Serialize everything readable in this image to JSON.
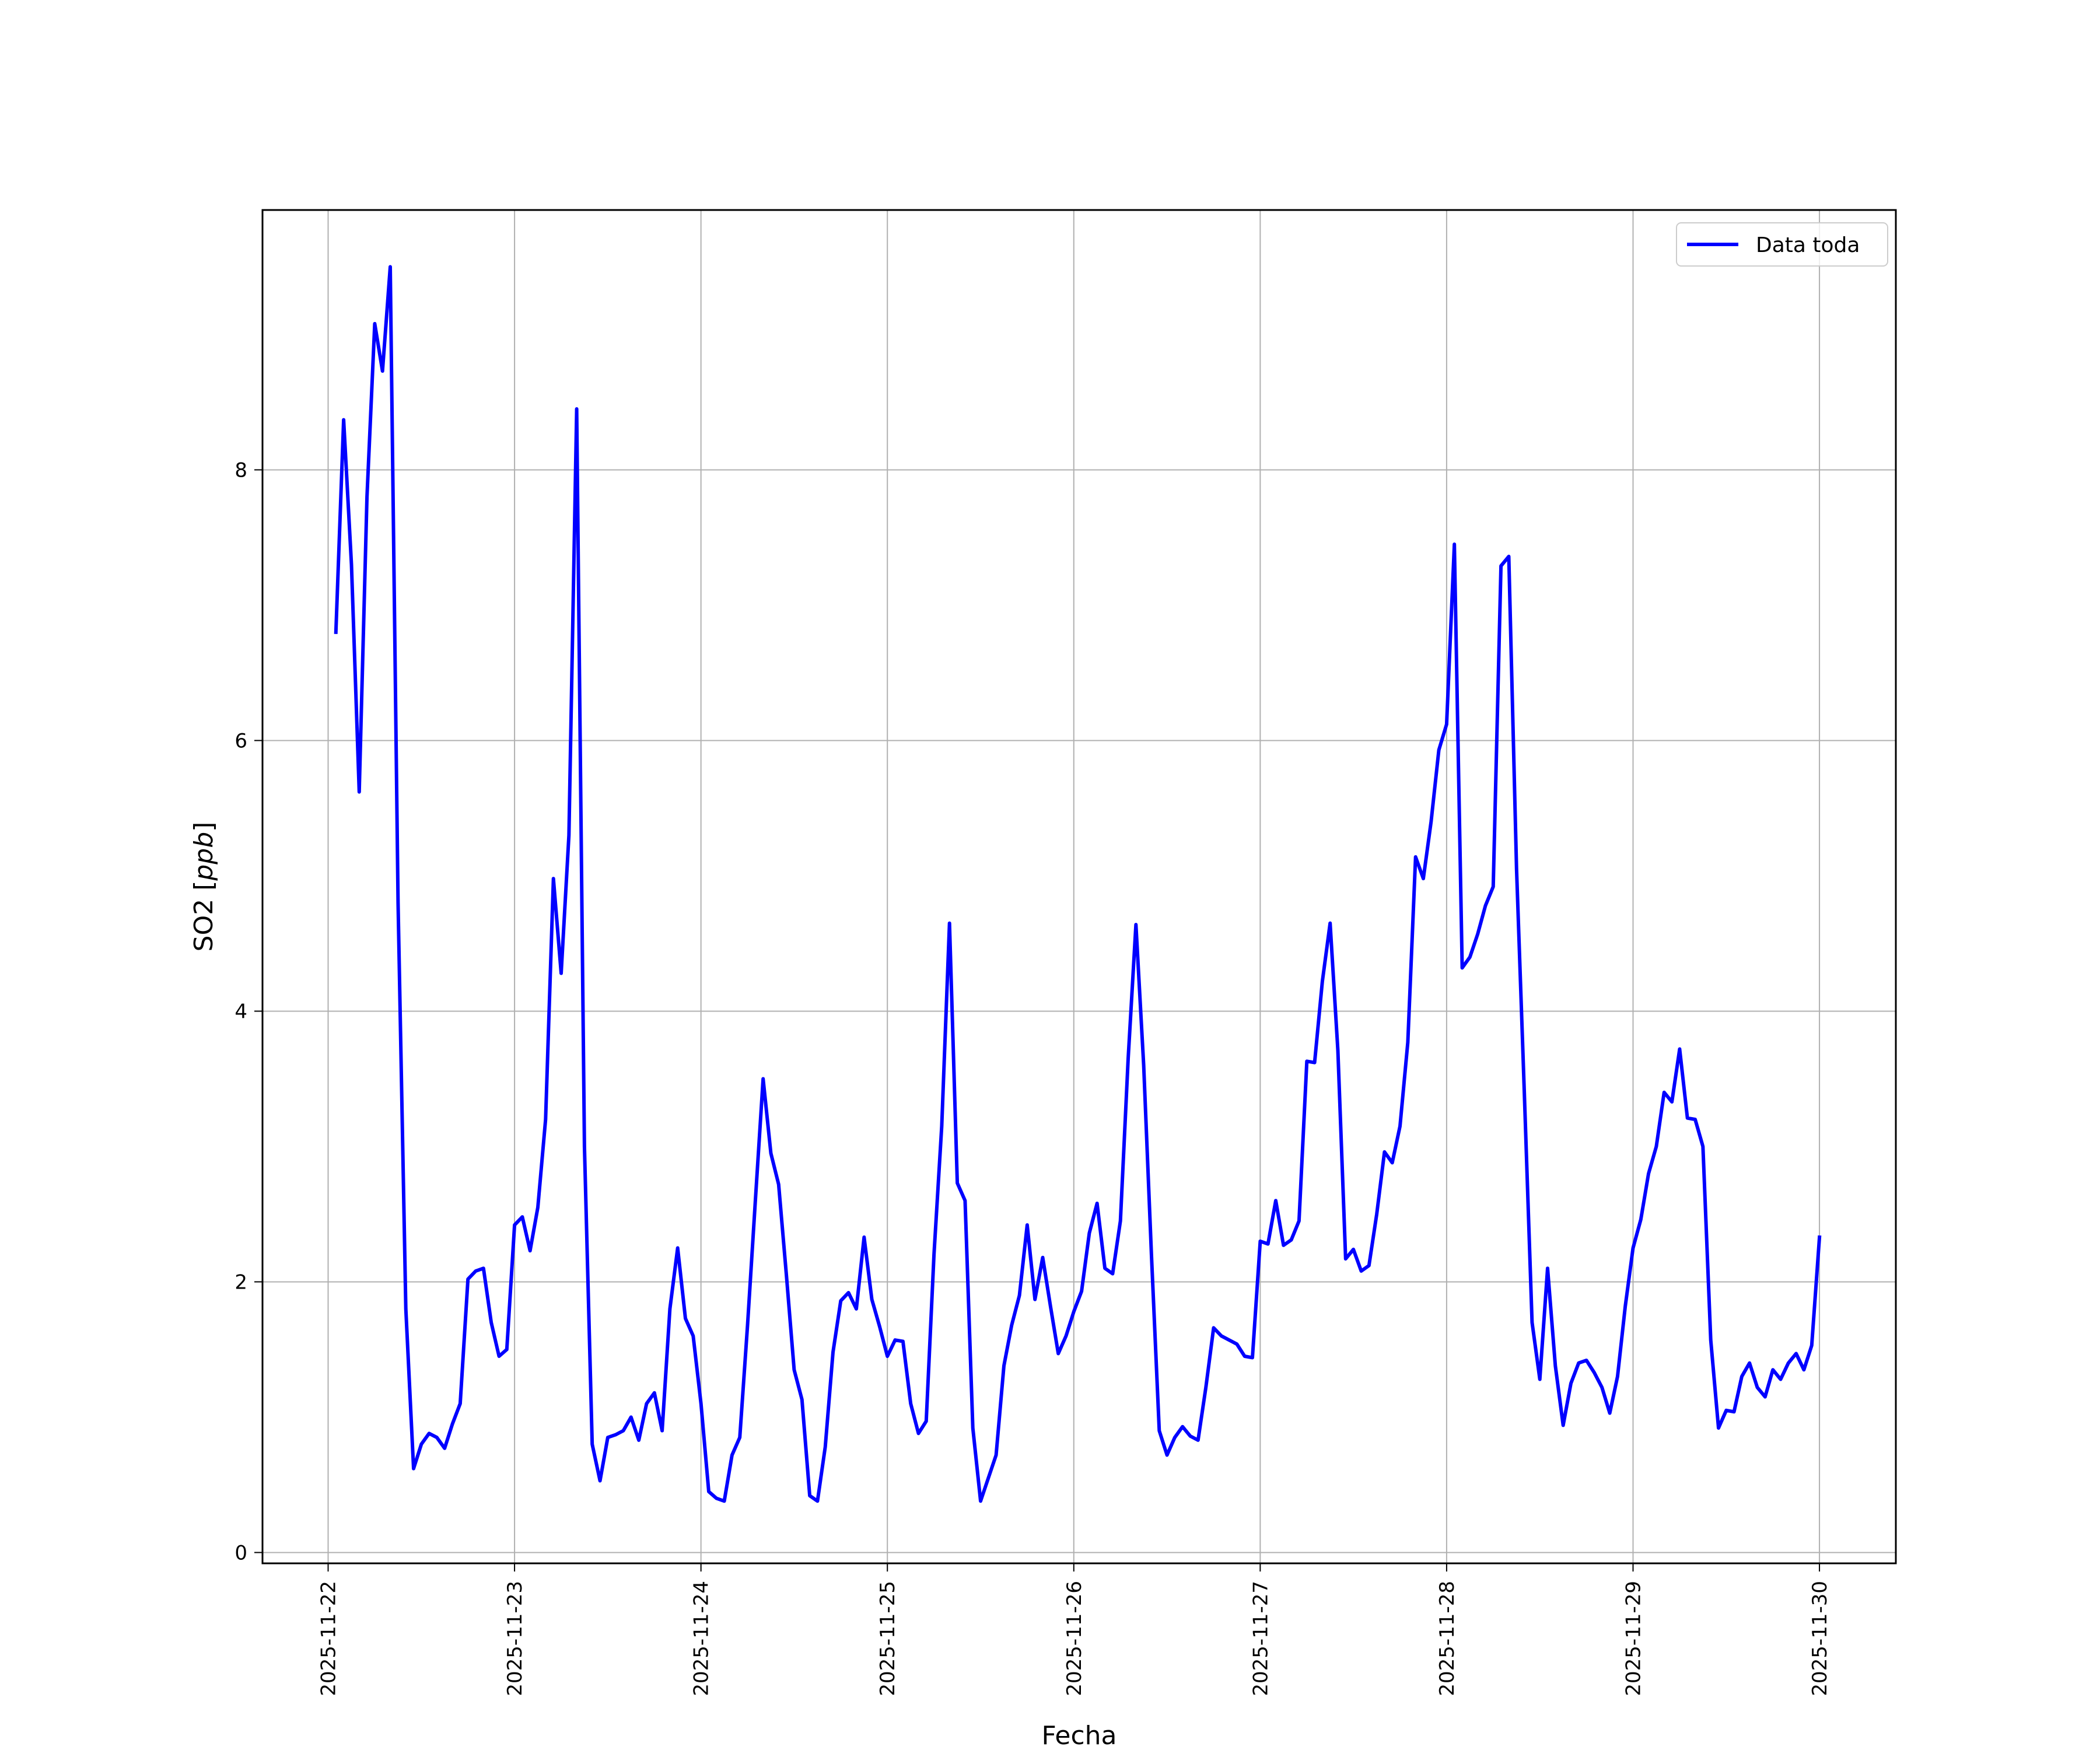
{
  "chart_data": {
    "type": "line",
    "xlabel": "Fecha",
    "ylabel": "SO2 [ppb]",
    "ylabel_main": "SO2 ",
    "ylabel_open": "[",
    "ylabel_unit": "ppb",
    "ylabel_close": "]",
    "x_ticks": [
      "2025-11-22",
      "2025-11-23",
      "2025-11-24",
      "2025-11-25",
      "2025-11-26",
      "2025-11-27",
      "2025-11-28",
      "2025-11-29",
      "2025-11-30"
    ],
    "y_ticks": [
      "0",
      "2",
      "4",
      "6",
      "8"
    ],
    "xlim": [
      "2025-11-21 15:33",
      "2025-11-30 09:50"
    ],
    "ylim": [
      -0.08,
      9.92
    ],
    "grid": true,
    "legend_position": "upper right",
    "series": [
      {
        "name": "Data toda",
        "color": "#0000ff",
        "x": [
          "2025-11-22 01:00",
          "2025-11-22 02:00",
          "2025-11-22 03:00",
          "2025-11-22 04:00",
          "2025-11-22 05:00",
          "2025-11-22 06:00",
          "2025-11-22 07:00",
          "2025-11-22 08:00",
          "2025-11-22 09:00",
          "2025-11-22 10:00",
          "2025-11-22 11:00",
          "2025-11-22 12:00",
          "2025-11-22 13:00",
          "2025-11-22 14:00",
          "2025-11-22 15:00",
          "2025-11-22 16:00",
          "2025-11-22 17:00",
          "2025-11-22 18:00",
          "2025-11-22 19:00",
          "2025-11-22 20:00",
          "2025-11-22 21:00",
          "2025-11-22 22:00",
          "2025-11-22 23:00",
          "2025-11-23 00:00",
          "2025-11-23 01:00",
          "2025-11-23 02:00",
          "2025-11-23 03:00",
          "2025-11-23 04:00",
          "2025-11-23 05:00",
          "2025-11-23 06:00",
          "2025-11-23 07:00",
          "2025-11-23 08:00",
          "2025-11-23 09:00",
          "2025-11-23 10:00",
          "2025-11-23 11:00",
          "2025-11-23 12:00",
          "2025-11-23 13:00",
          "2025-11-23 14:00",
          "2025-11-23 15:00",
          "2025-11-23 16:00",
          "2025-11-23 17:00",
          "2025-11-23 18:00",
          "2025-11-23 19:00",
          "2025-11-23 20:00",
          "2025-11-23 21:00",
          "2025-11-23 22:00",
          "2025-11-23 23:00",
          "2025-11-24 00:00",
          "2025-11-24 01:00",
          "2025-11-24 02:00",
          "2025-11-24 03:00",
          "2025-11-24 04:00",
          "2025-11-24 05:00",
          "2025-11-24 06:00",
          "2025-11-24 07:00",
          "2025-11-24 08:00",
          "2025-11-24 09:00",
          "2025-11-24 10:00",
          "2025-11-24 11:00",
          "2025-11-24 12:00",
          "2025-11-24 13:00",
          "2025-11-24 14:00",
          "2025-11-24 15:00",
          "2025-11-24 16:00",
          "2025-11-24 17:00",
          "2025-11-24 18:00",
          "2025-11-24 19:00",
          "2025-11-24 20:00",
          "2025-11-24 21:00",
          "2025-11-24 22:00",
          "2025-11-24 23:00",
          "2025-11-25 00:00",
          "2025-11-25 01:00",
          "2025-11-25 02:00",
          "2025-11-25 03:00",
          "2025-11-25 04:00",
          "2025-11-25 05:00",
          "2025-11-25 06:00",
          "2025-11-25 07:00",
          "2025-11-25 08:00",
          "2025-11-25 09:00",
          "2025-11-25 10:00",
          "2025-11-25 11:00",
          "2025-11-25 12:00",
          "2025-11-25 13:00",
          "2025-11-25 14:00",
          "2025-11-25 15:00",
          "2025-11-25 16:00",
          "2025-11-25 17:00",
          "2025-11-25 18:00",
          "2025-11-25 19:00",
          "2025-11-25 20:00",
          "2025-11-25 21:00",
          "2025-11-25 22:00",
          "2025-11-25 23:00",
          "2025-11-26 00:00",
          "2025-11-26 01:00",
          "2025-11-26 02:00",
          "2025-11-26 03:00",
          "2025-11-26 04:00",
          "2025-11-26 05:00",
          "2025-11-26 06:00",
          "2025-11-26 07:00",
          "2025-11-26 08:00",
          "2025-11-26 09:00",
          "2025-11-26 10:00",
          "2025-11-26 11:00",
          "2025-11-26 12:00",
          "2025-11-26 13:00",
          "2025-11-26 14:00",
          "2025-11-26 15:00",
          "2025-11-26 16:00",
          "2025-11-26 17:00",
          "2025-11-26 18:00",
          "2025-11-26 19:00",
          "2025-11-26 20:00",
          "2025-11-26 21:00",
          "2025-11-26 22:00",
          "2025-11-26 23:00",
          "2025-11-27 00:00",
          "2025-11-27 01:00",
          "2025-11-27 02:00",
          "2025-11-27 03:00",
          "2025-11-27 04:00",
          "2025-11-27 05:00",
          "2025-11-27 06:00",
          "2025-11-27 07:00",
          "2025-11-27 08:00",
          "2025-11-27 09:00",
          "2025-11-27 10:00",
          "2025-11-27 11:00",
          "2025-11-27 12:00",
          "2025-11-27 13:00",
          "2025-11-27 14:00",
          "2025-11-27 15:00",
          "2025-11-27 16:00",
          "2025-11-27 17:00",
          "2025-11-27 18:00",
          "2025-11-27 19:00",
          "2025-11-27 20:00",
          "2025-11-27 21:00",
          "2025-11-27 22:00",
          "2025-11-27 23:00",
          "2025-11-28 00:00",
          "2025-11-28 01:00",
          "2025-11-28 02:00",
          "2025-11-28 03:00",
          "2025-11-28 04:00",
          "2025-11-28 05:00",
          "2025-11-28 06:00",
          "2025-11-28 07:00",
          "2025-11-28 08:00",
          "2025-11-28 09:00",
          "2025-11-28 10:00",
          "2025-11-28 11:00",
          "2025-11-28 12:00",
          "2025-11-28 13:00",
          "2025-11-28 14:00",
          "2025-11-28 15:00",
          "2025-11-28 16:00",
          "2025-11-28 17:00",
          "2025-11-28 18:00",
          "2025-11-28 19:00",
          "2025-11-28 20:00",
          "2025-11-28 21:00",
          "2025-11-28 22:00",
          "2025-11-28 23:00",
          "2025-11-29 00:00",
          "2025-11-29 01:00",
          "2025-11-29 02:00",
          "2025-11-29 03:00",
          "2025-11-29 04:00",
          "2025-11-29 05:00",
          "2025-11-29 06:00",
          "2025-11-29 07:00",
          "2025-11-29 08:00",
          "2025-11-29 09:00",
          "2025-11-29 10:00",
          "2025-11-29 11:00",
          "2025-11-29 12:00",
          "2025-11-29 13:00",
          "2025-11-29 14:00",
          "2025-11-29 15:00",
          "2025-11-29 16:00",
          "2025-11-29 17:00",
          "2025-11-29 18:00",
          "2025-11-29 19:00",
          "2025-11-29 20:00",
          "2025-11-29 21:00",
          "2025-11-29 22:00",
          "2025-11-29 23:00",
          "2025-11-30 00:00"
        ],
        "y": [
          6.8,
          8.37,
          7.3,
          5.62,
          7.8,
          9.08,
          8.73,
          9.5,
          4.8,
          1.8,
          0.62,
          0.8,
          0.88,
          0.85,
          0.77,
          0.95,
          1.1,
          2.02,
          2.08,
          2.1,
          1.7,
          1.45,
          1.5,
          2.42,
          2.48,
          2.23,
          2.55,
          3.2,
          4.98,
          4.28,
          5.3,
          8.45,
          3.0,
          0.8,
          0.53,
          0.85,
          0.87,
          0.9,
          1.0,
          0.83,
          1.1,
          1.18,
          0.9,
          1.8,
          2.25,
          1.73,
          1.6,
          1.1,
          0.45,
          0.4,
          0.38,
          0.72,
          0.85,
          1.68,
          2.6,
          3.5,
          2.95,
          2.72,
          2.05,
          1.35,
          1.13,
          0.42,
          0.38,
          0.78,
          1.48,
          1.86,
          1.92,
          1.8,
          2.33,
          1.87,
          1.67,
          1.45,
          1.57,
          1.56,
          1.1,
          0.88,
          0.97,
          2.2,
          3.15,
          4.65,
          2.73,
          2.6,
          0.92,
          0.38,
          0.55,
          0.72,
          1.38,
          1.68,
          1.9,
          2.42,
          1.87,
          2.18,
          1.82,
          1.47,
          1.6,
          1.78,
          1.93,
          2.36,
          2.58,
          2.1,
          2.06,
          2.45,
          3.65,
          4.64,
          3.6,
          2.2,
          0.9,
          0.72,
          0.85,
          0.93,
          0.86,
          0.83,
          1.22,
          1.66,
          1.6,
          1.57,
          1.54,
          1.45,
          1.44,
          2.3,
          2.28,
          2.6,
          2.27,
          2.31,
          2.45,
          3.63,
          3.62,
          4.22,
          4.65,
          3.71,
          2.17,
          2.24,
          2.08,
          2.12,
          2.5,
          2.96,
          2.88,
          3.15,
          3.77,
          5.14,
          4.98,
          5.4,
          5.93,
          6.12,
          7.45,
          4.32,
          4.4,
          4.57,
          4.78,
          4.92,
          7.29,
          7.36,
          5.05,
          3.4,
          1.7,
          1.28,
          2.1,
          1.38,
          0.94,
          1.25,
          1.4,
          1.42,
          1.33,
          1.22,
          1.03,
          1.3,
          1.82,
          2.25,
          2.46,
          2.8,
          3.0,
          3.4,
          3.33,
          3.72,
          3.21,
          3.2,
          3.0,
          1.57,
          0.92,
          1.05,
          1.04,
          1.3,
          1.4,
          1.22,
          1.15,
          1.35,
          1.28,
          1.4,
          1.47,
          1.35,
          1.53,
          2.33
        ]
      }
    ]
  }
}
